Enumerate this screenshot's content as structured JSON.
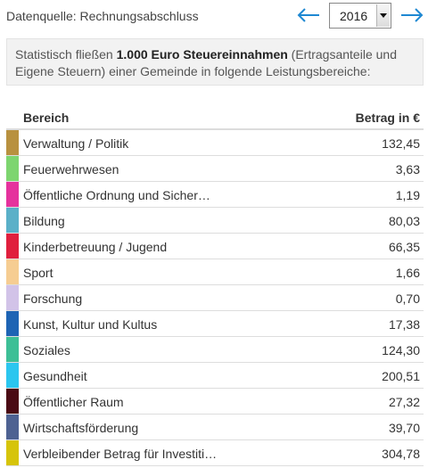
{
  "header": {
    "source_label": "Datenquelle: Rechnungsabschluss",
    "year": "2016",
    "prev_icon": "arrow-left-icon",
    "next_icon": "arrow-right-icon",
    "accent_color": "#1e88d2"
  },
  "info": {
    "text_before": "Statistisch fließen ",
    "text_bold": "1.000 Euro Steuereinnahmen",
    "text_after": " (Ertragsanteile und Eigene Steuern) einer Gemeinde in folgende Leistungsbereiche:"
  },
  "table": {
    "headers": {
      "name": "Bereich",
      "value": "Betrag in €"
    },
    "rows": [
      {
        "label": "Verwaltung / Politik",
        "value": "132,45",
        "color": "#b8913f"
      },
      {
        "label": "Feuerwehrwesen",
        "value": "3,63",
        "color": "#7dd56f"
      },
      {
        "label": "Öffentliche Ordnung und Sicher…",
        "value": "1,19",
        "color": "#e5329d"
      },
      {
        "label": "Bildung",
        "value": "80,03",
        "color": "#5ab0c8"
      },
      {
        "label": "Kinderbetreuung / Jugend",
        "value": "66,35",
        "color": "#e01f3d"
      },
      {
        "label": "Sport",
        "value": "1,66",
        "color": "#f6cd92"
      },
      {
        "label": "Forschung",
        "value": "0,70",
        "color": "#d2c3e8"
      },
      {
        "label": "Kunst, Kultur und Kultus",
        "value": "17,38",
        "color": "#1e64b4"
      },
      {
        "label": "Soziales",
        "value": "124,30",
        "color": "#3dbf96"
      },
      {
        "label": "Gesundheit",
        "value": "200,51",
        "color": "#2bc6ef"
      },
      {
        "label": "Öffentlicher Raum",
        "value": "27,32",
        "color": "#4a0a14"
      },
      {
        "label": "Wirtschaftsförderung",
        "value": "39,70",
        "color": "#4e6292"
      },
      {
        "label": "Verbleibender Betrag für Investiti…",
        "value": "304,78",
        "color": "#d6c40a"
      }
    ]
  }
}
